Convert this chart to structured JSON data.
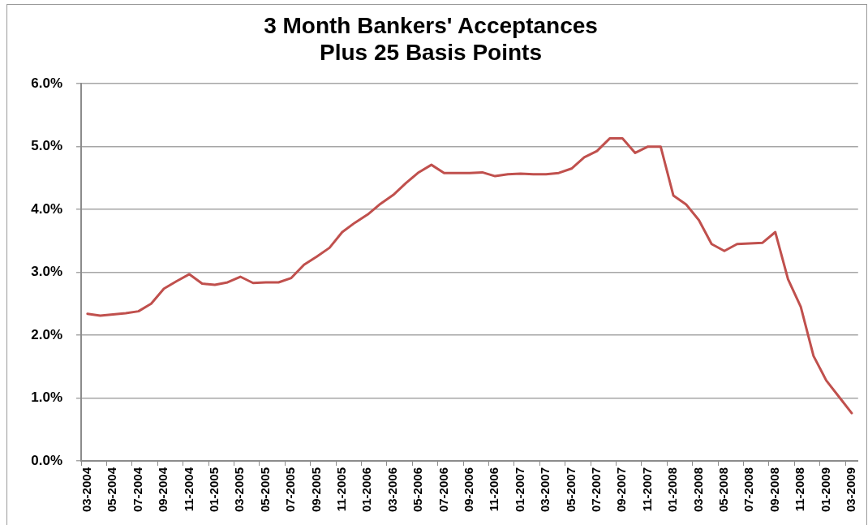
{
  "chart_data": {
    "type": "line",
    "title": "3 Month Bankers' Acceptances",
    "subtitle": "Plus 25 Basis Points",
    "categories": [
      "03-2004",
      null,
      "05-2004",
      null,
      "07-2004",
      null,
      "09-2004",
      null,
      "11-2004",
      null,
      "01-2005",
      null,
      "03-2005",
      null,
      "05-2005",
      null,
      "07-2005",
      null,
      "09-2005",
      null,
      "11-2005",
      null,
      "01-2006",
      null,
      "03-2006",
      null,
      "05-2006",
      null,
      "07-2006",
      null,
      "09-2006",
      null,
      "11-2006",
      null,
      "01-2007",
      null,
      "03-2007",
      null,
      "05-2007",
      null,
      "07-2007",
      null,
      "09-2007",
      null,
      "11-2007",
      null,
      "01-2008",
      null,
      "03-2008",
      null,
      "05-2008",
      null,
      "07-2008",
      null,
      "09-2008",
      null,
      "11-2008",
      null,
      "01-2009",
      null,
      "03-2009"
    ],
    "color": "#c0504d",
    "values": [
      2.34,
      2.31,
      2.33,
      2.35,
      2.38,
      2.5,
      2.74,
      2.86,
      2.97,
      2.82,
      2.8,
      2.84,
      2.93,
      2.83,
      2.84,
      2.84,
      2.91,
      3.12,
      3.25,
      3.39,
      3.64,
      3.79,
      3.92,
      4.09,
      4.23,
      4.42,
      4.59,
      4.71,
      4.58,
      4.58,
      4.58,
      4.59,
      4.53,
      4.56,
      4.57,
      4.56,
      4.56,
      4.58,
      4.65,
      4.83,
      4.93,
      5.13,
      5.13,
      4.9,
      5.0,
      5.0,
      4.22,
      4.08,
      3.83,
      3.45,
      3.34,
      3.45,
      3.46,
      3.47,
      3.64,
      2.89,
      2.45,
      1.67,
      1.28,
      1.02,
      0.76
    ],
    "ylim": [
      0,
      6
    ],
    "yticks": [
      {
        "value": 0,
        "label": "0.0%"
      },
      {
        "value": 1,
        "label": "1.0%"
      },
      {
        "value": 2,
        "label": "2.0%"
      },
      {
        "value": 3,
        "label": "3.0%"
      },
      {
        "value": 4,
        "label": "4.0%"
      },
      {
        "value": 5,
        "label": "5.0%"
      },
      {
        "value": 6,
        "label": "6.0%"
      }
    ],
    "grid": "y"
  }
}
